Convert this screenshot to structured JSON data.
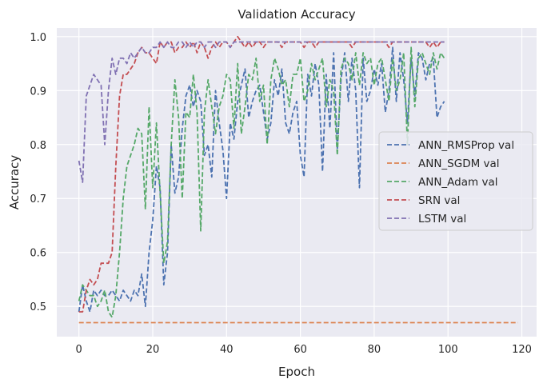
{
  "chart_data": {
    "type": "line",
    "title": "Validation Accuracy",
    "xlabel": "Epoch",
    "ylabel": "Accuracy",
    "xlim": [
      -6,
      124
    ],
    "ylim": [
      0.444,
      1.016
    ],
    "xticks": [
      0,
      20,
      40,
      60,
      80,
      100,
      120
    ],
    "yticks": [
      0.5,
      0.6,
      0.7,
      0.8,
      0.9,
      1.0
    ],
    "xtick_labels": [
      "0",
      "20",
      "40",
      "60",
      "80",
      "100",
      "120"
    ],
    "ytick_labels": [
      "0.5",
      "0.6",
      "0.7",
      "0.8",
      "0.9",
      "1.0"
    ],
    "grid": true,
    "legend_position": "center-right",
    "series": [
      {
        "name": "ANN_RMSProp val",
        "color": "#4c72b0",
        "x0": 0,
        "values": [
          0.49,
          0.54,
          0.51,
          0.49,
          0.53,
          0.52,
          0.53,
          0.52,
          0.52,
          0.53,
          0.52,
          0.51,
          0.53,
          0.52,
          0.51,
          0.53,
          0.52,
          0.56,
          0.5,
          0.6,
          0.66,
          0.76,
          0.72,
          0.54,
          0.6,
          0.8,
          0.71,
          0.74,
          0.83,
          0.89,
          0.91,
          0.87,
          0.9,
          0.88,
          0.78,
          0.8,
          0.74,
          0.9,
          0.84,
          0.79,
          0.7,
          0.84,
          0.81,
          0.88,
          0.91,
          0.94,
          0.85,
          0.88,
          0.9,
          0.91,
          0.86,
          0.81,
          0.84,
          0.92,
          0.89,
          0.94,
          0.84,
          0.82,
          0.86,
          0.88,
          0.78,
          0.74,
          0.93,
          0.89,
          0.95,
          0.91,
          0.75,
          0.93,
          0.83,
          0.97,
          0.79,
          0.92,
          0.97,
          0.88,
          0.96,
          0.9,
          0.72,
          0.96,
          0.88,
          0.9,
          0.94,
          0.91,
          0.95,
          0.86,
          0.9,
          0.98,
          0.88,
          0.97,
          0.92,
          0.84,
          0.96,
          0.89,
          0.97,
          0.96,
          0.92,
          0.95,
          0.96,
          0.85,
          0.87,
          0.88
        ]
      },
      {
        "name": "ANN_SGDM val",
        "color": "#dd8452",
        "x0": 0,
        "values": [
          0.47,
          0.47,
          0.47,
          0.47,
          0.47,
          0.47,
          0.47,
          0.47,
          0.47,
          0.47,
          0.47,
          0.47,
          0.47,
          0.47,
          0.47,
          0.47,
          0.47,
          0.47,
          0.47,
          0.47,
          0.47,
          0.47,
          0.47,
          0.47,
          0.47,
          0.47,
          0.47,
          0.47,
          0.47,
          0.47,
          0.47,
          0.47,
          0.47,
          0.47,
          0.47,
          0.47,
          0.47,
          0.47,
          0.47,
          0.47,
          0.47,
          0.47,
          0.47,
          0.47,
          0.47,
          0.47,
          0.47,
          0.47,
          0.47,
          0.47,
          0.47,
          0.47,
          0.47,
          0.47,
          0.47,
          0.47,
          0.47,
          0.47,
          0.47,
          0.47,
          0.47,
          0.47,
          0.47,
          0.47,
          0.47,
          0.47,
          0.47,
          0.47,
          0.47,
          0.47,
          0.47,
          0.47,
          0.47,
          0.47,
          0.47,
          0.47,
          0.47,
          0.47,
          0.47,
          0.47,
          0.47,
          0.47,
          0.47,
          0.47,
          0.47,
          0.47,
          0.47,
          0.47,
          0.47,
          0.47,
          0.47,
          0.47,
          0.47,
          0.47,
          0.47,
          0.47,
          0.47,
          0.47,
          0.47,
          0.47,
          0.47,
          0.47,
          0.47,
          0.47,
          0.47,
          0.47,
          0.47,
          0.47,
          0.47,
          0.47,
          0.47,
          0.47,
          0.47,
          0.47,
          0.47,
          0.47,
          0.47,
          0.47,
          0.47,
          0.47
        ]
      },
      {
        "name": "ANN_Adam val",
        "color": "#55a868",
        "x0": 0,
        "values": [
          0.51,
          0.54,
          0.53,
          0.52,
          0.52,
          0.5,
          0.51,
          0.53,
          0.49,
          0.48,
          0.52,
          0.6,
          0.7,
          0.76,
          0.78,
          0.8,
          0.83,
          0.82,
          0.68,
          0.87,
          0.72,
          0.84,
          0.71,
          0.58,
          0.62,
          0.8,
          0.92,
          0.85,
          0.7,
          0.86,
          0.85,
          0.93,
          0.86,
          0.64,
          0.86,
          0.92,
          0.87,
          0.82,
          0.87,
          0.89,
          0.93,
          0.92,
          0.83,
          0.95,
          0.82,
          0.87,
          0.93,
          0.92,
          0.96,
          0.88,
          0.91,
          0.8,
          0.92,
          0.96,
          0.94,
          0.91,
          0.92,
          0.87,
          0.93,
          0.93,
          0.96,
          0.88,
          0.9,
          0.95,
          0.92,
          0.94,
          0.96,
          0.87,
          0.92,
          0.9,
          0.78,
          0.94,
          0.96,
          0.95,
          0.92,
          0.97,
          0.91,
          0.97,
          0.95,
          0.96,
          0.91,
          0.95,
          0.96,
          0.92,
          0.88,
          0.96,
          0.9,
          0.92,
          0.97,
          0.8,
          0.98,
          0.87,
          0.96,
          0.97,
          0.95,
          0.93,
          0.97,
          0.94,
          0.97,
          0.96
        ]
      },
      {
        "name": "SRN val",
        "color": "#c44e52",
        "x0": 0,
        "values": [
          0.49,
          0.49,
          0.53,
          0.55,
          0.54,
          0.55,
          0.58,
          0.58,
          0.58,
          0.6,
          0.76,
          0.89,
          0.93,
          0.93,
          0.94,
          0.95,
          0.97,
          0.98,
          0.97,
          0.97,
          0.96,
          0.95,
          0.99,
          0.98,
          0.99,
          0.99,
          0.97,
          0.98,
          0.98,
          0.99,
          0.98,
          0.99,
          0.97,
          0.99,
          0.98,
          0.96,
          0.98,
          0.99,
          0.98,
          0.99,
          0.99,
          0.98,
          0.99,
          1.0,
          0.99,
          0.98,
          0.99,
          0.98,
          0.99,
          0.99,
          0.98,
          0.99,
          0.99,
          0.99,
          0.99,
          0.98,
          0.99,
          0.99,
          0.99,
          0.99,
          0.99,
          0.98,
          0.99,
          0.99,
          0.98,
          0.99,
          0.99,
          0.99,
          0.99,
          0.99,
          0.99,
          0.99,
          0.99,
          0.99,
          0.98,
          0.99,
          0.99,
          0.99,
          0.99,
          0.99,
          0.99,
          0.99,
          0.99,
          0.99,
          0.98,
          0.99,
          0.99,
          0.99,
          0.99,
          0.99,
          0.99,
          0.99,
          0.99,
          0.99,
          0.99,
          0.98,
          0.99,
          0.98,
          0.99,
          0.99
        ]
      },
      {
        "name": "LSTM val",
        "color": "#8172b3",
        "x0": 0,
        "values": [
          0.77,
          0.73,
          0.89,
          0.91,
          0.93,
          0.92,
          0.91,
          0.8,
          0.9,
          0.96,
          0.93,
          0.96,
          0.96,
          0.95,
          0.97,
          0.96,
          0.97,
          0.98,
          0.97,
          0.97,
          0.98,
          0.98,
          0.99,
          0.98,
          0.99,
          0.98,
          0.98,
          0.99,
          0.99,
          0.98,
          0.99,
          0.98,
          0.99,
          0.99,
          0.98,
          0.99,
          0.99,
          0.98,
          0.99,
          0.99,
          0.99,
          0.98,
          0.99,
          0.99,
          0.99,
          0.99,
          0.99,
          0.99,
          0.99,
          0.99,
          0.99,
          0.99,
          0.99,
          0.99,
          0.99,
          0.99,
          0.99,
          0.99,
          0.99,
          0.99,
          0.99,
          0.99,
          0.99,
          0.99,
          0.99,
          0.99,
          0.99,
          0.99,
          0.99,
          0.99,
          0.99,
          0.99,
          0.99,
          0.99,
          0.99,
          0.99,
          0.99,
          0.99,
          0.99,
          0.99,
          0.99,
          0.99,
          0.99,
          0.99,
          0.99,
          0.99,
          0.99,
          0.99,
          0.99,
          0.99,
          0.99,
          0.99,
          0.99,
          0.99,
          0.99,
          0.99,
          0.99,
          0.99,
          0.99,
          0.99
        ]
      }
    ]
  }
}
